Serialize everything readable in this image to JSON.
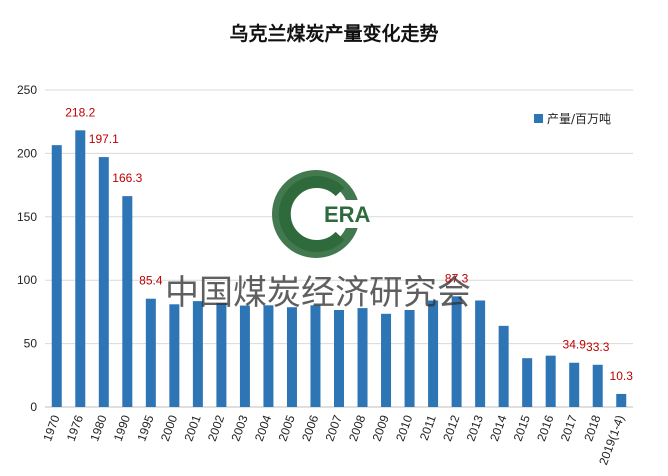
{
  "chart_data": {
    "type": "bar",
    "title": "乌克兰煤炭产量变化走势",
    "categories": [
      "1970",
      "1976",
      "1980",
      "1990",
      "1995",
      "2000",
      "2001",
      "2002",
      "2003",
      "2004",
      "2005",
      "2006",
      "2007",
      "2008",
      "2009",
      "2010",
      "2011",
      "2012",
      "2013",
      "2014",
      "2015",
      "2016",
      "2017",
      "2018",
      "2019(1-4)"
    ],
    "series": [
      {
        "name": "产量/百万吨",
        "color": "#2e75b6",
        "values": [
          206.5,
          218.2,
          197.1,
          166.3,
          85.4,
          81,
          83.5,
          82,
          80,
          80.2,
          78.7,
          80.2,
          76.5,
          78,
          73.5,
          76.5,
          84,
          87.3,
          84,
          64,
          38.5,
          40.5,
          34.9,
          33.3,
          10.3
        ]
      }
    ],
    "data_labels": {
      "1976": "218.2",
      "1980": "197.1",
      "1990": "166.3",
      "1995": "85.4",
      "2012": "87.3",
      "2017": "34.9",
      "2018": "33.3",
      "2019(1-4)": "10.3"
    },
    "ylim": [
      0,
      250
    ],
    "yticks": [
      0,
      50,
      100,
      150,
      200,
      250
    ],
    "grid": true,
    "legend_position": "top-right"
  },
  "watermark": {
    "text": "中国煤炭经济研究会",
    "logo_text": "ERA"
  }
}
